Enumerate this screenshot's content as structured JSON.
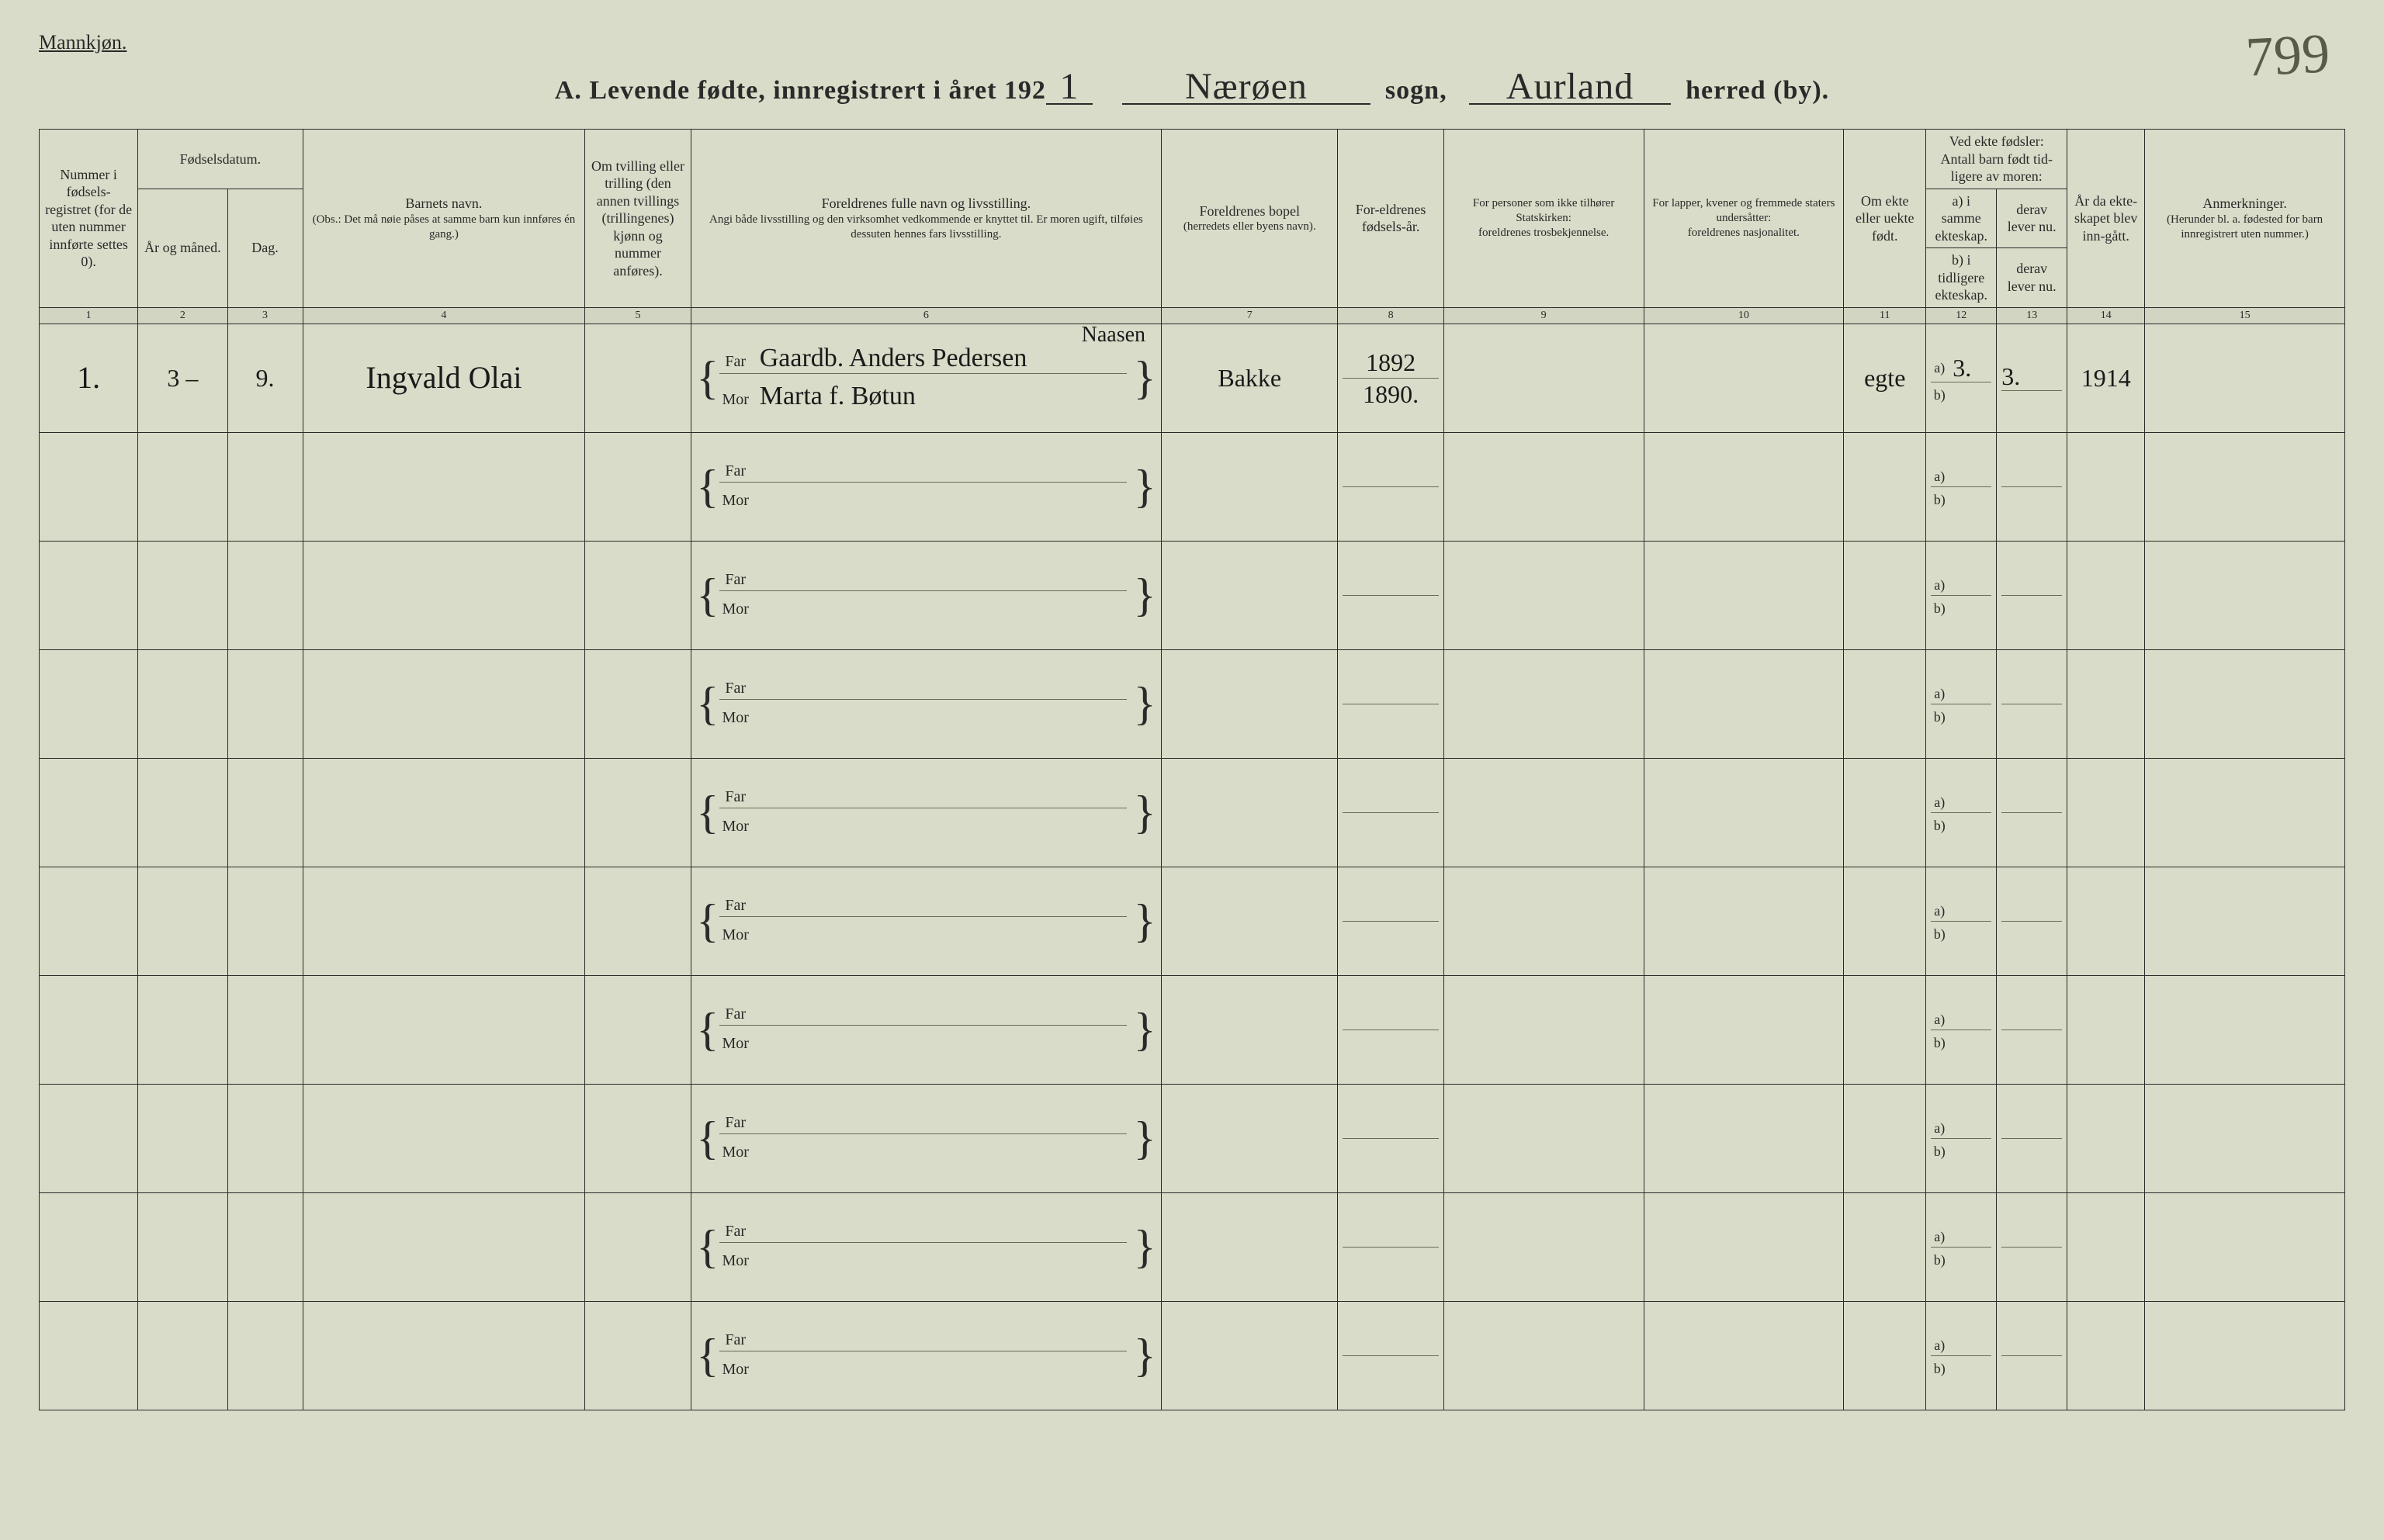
{
  "corner_number": "799",
  "gender_label": "Mannkjøn.",
  "title": {
    "prefix": "A.   Levende  fødte,  innregistrert  i  året  192",
    "year_suffix": "1",
    "sogn_label": "sogn,",
    "sogn_value": "Nærøen",
    "herred_label": "herred (by).",
    "herred_value": "Aurland"
  },
  "headers": {
    "c1": "Nummer i fødsels-registret (for de uten nummer innførte settes 0).",
    "c2_top": "Fødselsdatum.",
    "c2a": "År og måned.",
    "c2b": "Dag.",
    "c3_top": "Barnets navn.",
    "c3_sub": "(Obs.: Det må nøie påses at samme barn kun innføres én gang.)",
    "c4": "Om tvilling eller trilling (den annen tvillings (trillingenes) kjønn og nummer anføres).",
    "c5_top": "Foreldrenes fulle navn og livsstilling.",
    "c5_sub": "Angi både livsstilling og den virksomhet vedkommende er knyttet til. Er moren ugift, tilføies dessuten hennes fars livsstilling.",
    "c6_top": "Foreldrenes bopel",
    "c6_sub": "(herredets eller byens navn).",
    "c7": "For-eldrenes fødsels-år.",
    "c8_top": "For personer som ikke tilhører Statskirken:",
    "c8_sub": "foreldrenes trosbekjennelse.",
    "c9_top": "For lapper, kvener og fremmede staters undersåtter:",
    "c9_sub": "foreldrenes nasjonalitet.",
    "c10": "Om ekte eller uekte født.",
    "c11_top": "Ved ekte fødsler: Antall barn født tid-ligere av moren:",
    "c11a": "a) i samme ekteskap.",
    "c11b": "b) i tidligere ekteskap.",
    "c11c": "derav lever nu.",
    "c11d": "derav lever nu.",
    "c12": "År da ekte-skapet blev inn-gått.",
    "c13_top": "Anmerkninger.",
    "c13_sub": "(Herunder bl. a. fødested for barn innregistrert uten nummer.)"
  },
  "colnums": [
    "1",
    "2",
    "3",
    "4",
    "5",
    "6",
    "7",
    "8",
    "9",
    "10",
    "11",
    "12",
    "13",
    "14",
    "15"
  ],
  "row1": {
    "num": "1.",
    "year_month": "3 –",
    "day": "9.",
    "child_name": "Ingvald Olai",
    "twin": "",
    "far_extra": "Naasen",
    "far": "Gaardb. Anders Pedersen",
    "mor": "Marta f. Bøtun",
    "bopel": "Bakke",
    "far_year": "1892",
    "mor_year": "1890.",
    "tros": "",
    "nasj": "",
    "ekte": "egte",
    "a_same": "3.",
    "a_lever": "3.",
    "b_prev": "",
    "b_lever": "",
    "marriage_year": "1914",
    "remark": ""
  },
  "far_label": "Far",
  "mor_label": "Mor",
  "a_label": "a)",
  "b_label": "b)"
}
